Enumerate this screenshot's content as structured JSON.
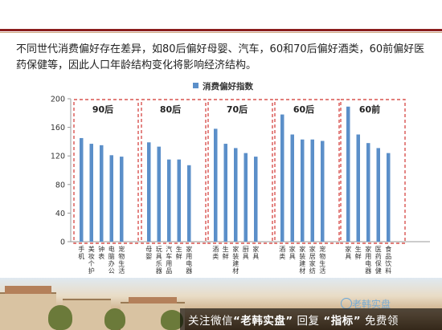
{
  "description": "不同世代消费偏好存在差异，如80后偏好母婴、汽车，60和70后偏好酒类，60前偏好医药保健等，因此人口年龄结构变化将影响经济结构。",
  "chart_data": {
    "type": "bar",
    "legend": "消费偏好指数",
    "legend_position": "top-center",
    "ylim": [
      0,
      200
    ],
    "yticks": [
      0,
      40,
      80,
      120,
      160,
      200
    ],
    "grid": false,
    "bar_color": "#5b8fc9",
    "group_box_color": "#d9534f",
    "groups": [
      {
        "name": "90后",
        "categories": [
          "手机",
          "美妆个护",
          "钟表",
          "电脑办公",
          "宠物生活"
        ],
        "values": [
          145,
          137,
          135,
          121,
          119
        ]
      },
      {
        "name": "80后",
        "categories": [
          "母婴",
          "玩具乐器",
          "汽车用品",
          "生鲜",
          "家用电器"
        ],
        "values": [
          139,
          133,
          115,
          115,
          107
        ]
      },
      {
        "name": "70后",
        "categories": [
          "酒类",
          "生鲜",
          "家装建材",
          "厨具",
          "家具"
        ],
        "values": [
          158,
          137,
          131,
          124,
          119
        ]
      },
      {
        "name": "60后",
        "categories": [
          "酒类",
          "家具",
          "家装建材",
          "家居家纺",
          "宠物生活"
        ],
        "values": [
          178,
          150,
          143,
          143,
          141
        ]
      },
      {
        "name": "60前",
        "categories": [
          "家具",
          "生鲜",
          "家用电器",
          "医药保健",
          "食品饮料"
        ],
        "values": [
          189,
          150,
          138,
          131,
          124
        ]
      }
    ]
  },
  "banner": {
    "prefix": "关注微信",
    "keyword": "“老韩实盘”",
    "middle": "回复",
    "keyword2": "“指标”",
    "suffix": "免费领"
  },
  "watermark": "老韩实盘"
}
